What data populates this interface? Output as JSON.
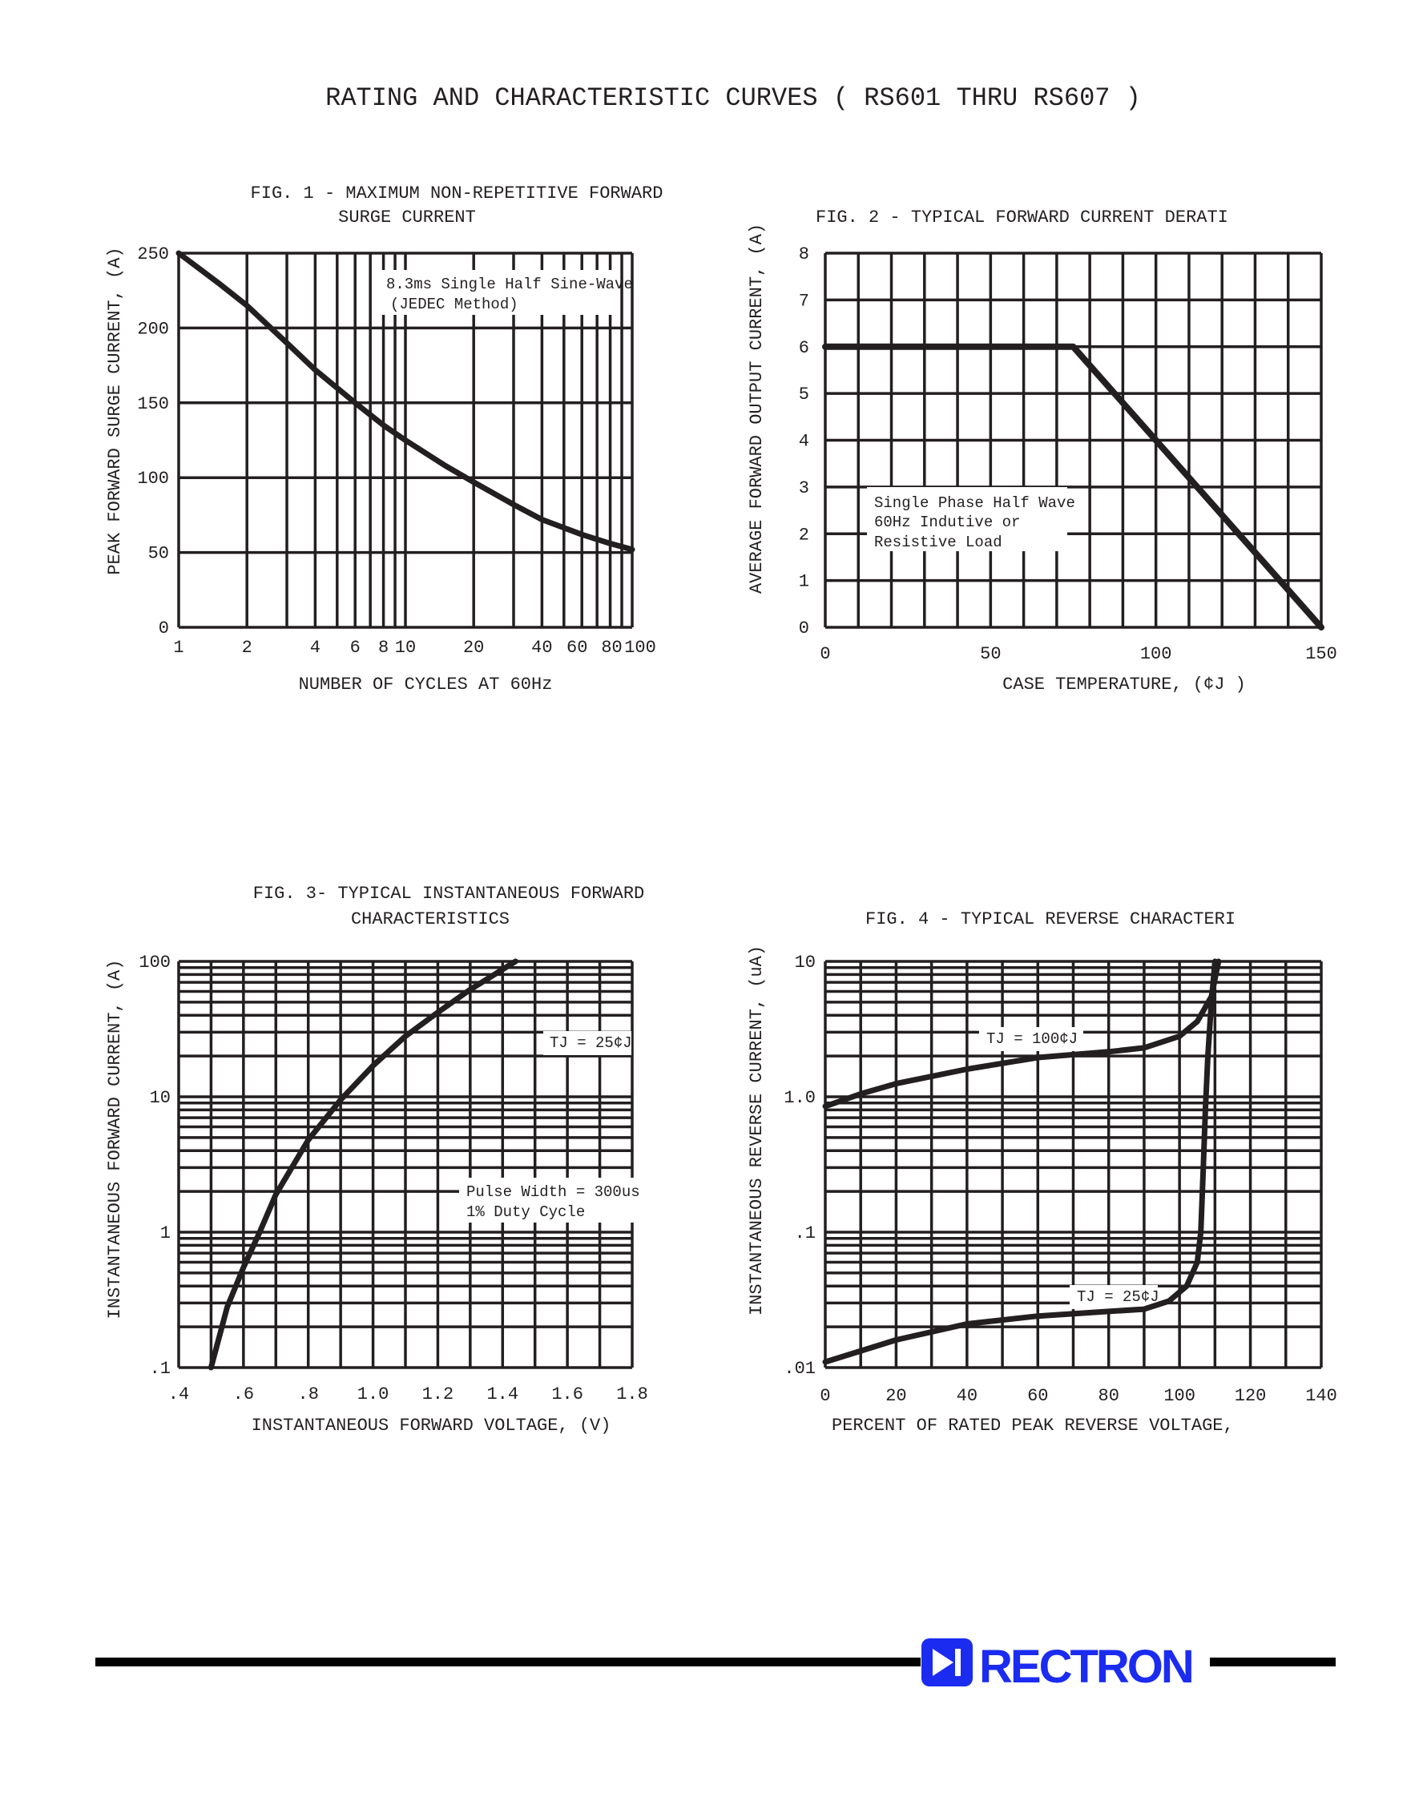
{
  "page_title": "RATING AND CHARACTERISTIC CURVES ( RS601 THRU RS607 )",
  "logo": {
    "text": "RECTRON",
    "color": "#1b2cf0"
  },
  "ink_color": "#231f20",
  "chart_data": [
    {
      "type": "line",
      "title": [
        "FIG. 1 - MAXIMUM NON-REPETITIVE FORWARD",
        "SURGE CURRENT"
      ],
      "xlabel": "NUMBER OF CYCLES AT 60Hz",
      "ylabel": "PEAK FORWARD SURGE CURRENT, (A)",
      "xscale": "log",
      "xlim": [
        1,
        100
      ],
      "ylim": [
        0,
        250
      ],
      "xticks": [
        {
          "v": 1,
          "l": "1"
        },
        {
          "v": 2,
          "l": "2"
        },
        {
          "v": 4,
          "l": "4"
        },
        {
          "v": 6,
          "l": "6"
        },
        {
          "v": 8,
          "l": "8"
        },
        {
          "v": 10,
          "l": "10"
        },
        {
          "v": 20,
          "l": "20"
        },
        {
          "v": 40,
          "l": "40"
        },
        {
          "v": 60,
          "l": "60"
        },
        {
          "v": 80,
          "l": "80"
        },
        {
          "v": 100,
          "l": "100"
        }
      ],
      "yticks": [
        {
          "v": 0,
          "l": "0"
        },
        {
          "v": 50,
          "l": "50"
        },
        {
          "v": 100,
          "l": "100"
        },
        {
          "v": 150,
          "l": "150"
        },
        {
          "v": 200,
          "l": "200"
        },
        {
          "v": 250,
          "l": "250"
        }
      ],
      "grid": true,
      "annotations": [
        "8.3ms Single Half Sine-Wave",
        "(JEDEC Method)"
      ],
      "series": [
        {
          "x": [
            1,
            1.5,
            2,
            3,
            4,
            6,
            8,
            10,
            15,
            20,
            30,
            40,
            60,
            80,
            100
          ],
          "y": [
            250,
            230,
            215,
            190,
            172,
            150,
            135,
            125,
            108,
            97,
            82,
            72,
            62,
            56,
            52
          ]
        }
      ]
    },
    {
      "type": "line",
      "title": [
        "FIG. 2 - TYPICAL FORWARD CURRENT DERATI"
      ],
      "xlabel": "CASE TEMPERATURE, (¢J )",
      "ylabel": "AVERAGE FORWARD OUTPUT CURRENT, (A)",
      "xscale": "linear",
      "xlim": [
        0,
        150
      ],
      "ylim": [
        0,
        8
      ],
      "xticks": [
        {
          "v": 0,
          "l": "0"
        },
        {
          "v": 50,
          "l": "50"
        },
        {
          "v": 100,
          "l": "100"
        },
        {
          "v": 150,
          "l": "150"
        }
      ],
      "yticks": [
        {
          "v": 0,
          "l": "0"
        },
        {
          "v": 1,
          "l": "1"
        },
        {
          "v": 2,
          "l": "2"
        },
        {
          "v": 3,
          "l": "3"
        },
        {
          "v": 4,
          "l": "4"
        },
        {
          "v": 5,
          "l": "5"
        },
        {
          "v": 6,
          "l": "6"
        },
        {
          "v": 7,
          "l": "7"
        },
        {
          "v": 8,
          "l": "8"
        }
      ],
      "grid": true,
      "annotations": [
        "Single Phase Half Wave",
        "60Hz Indutive or",
        "Resistive Load"
      ],
      "series": [
        {
          "x": [
            0,
            75,
            150
          ],
          "y": [
            6,
            6,
            0
          ]
        }
      ]
    },
    {
      "type": "line",
      "title": [
        "FIG. 3- TYPICAL INSTANTANEOUS FORWARD",
        "CHARACTERISTICS"
      ],
      "xlabel": "INSTANTANEOUS FORWARD VOLTAGE, (V)",
      "ylabel": "INSTANTANEOUS FORWARD CURRENT, (A)",
      "xscale": "linear",
      "yscale": "log",
      "xlim": [
        0.4,
        1.8
      ],
      "ylim": [
        0.1,
        100
      ],
      "xticks": [
        {
          "v": 0.4,
          "l": ".4"
        },
        {
          "v": 0.6,
          "l": ".6"
        },
        {
          "v": 0.8,
          "l": ".8"
        },
        {
          "v": 1.0,
          "l": "1.0"
        },
        {
          "v": 1.2,
          "l": "1.2"
        },
        {
          "v": 1.4,
          "l": "1.4"
        },
        {
          "v": 1.6,
          "l": "1.6"
        },
        {
          "v": 1.8,
          "l": "1.8"
        }
      ],
      "yticks": [
        {
          "v": 0.1,
          "l": ".1"
        },
        {
          "v": 1,
          "l": "1"
        },
        {
          "v": 10,
          "l": "10"
        },
        {
          "v": 100,
          "l": "100"
        }
      ],
      "grid": true,
      "annotations": [
        "TJ = 25¢J",
        "Pulse Width = 300us",
        "1% Duty Cycle"
      ],
      "series": [
        {
          "name": "TJ = 25¢J",
          "x": [
            0.5,
            0.55,
            0.6,
            0.65,
            0.7,
            0.8,
            0.9,
            1.0,
            1.1,
            1.2,
            1.3,
            1.44
          ],
          "y": [
            0.1,
            0.28,
            0.55,
            1.0,
            1.9,
            4.8,
            9.5,
            17,
            28,
            42,
            62,
            100
          ]
        }
      ]
    },
    {
      "type": "line",
      "title": [
        "FIG. 4 - TYPICAL REVERSE CHARACTERI"
      ],
      "xlabel": "PERCENT OF RATED PEAK REVERSE VOLTAGE,",
      "ylabel": "INSTANTANEOUS REVERSE CURRENT, (uA)",
      "xscale": "linear",
      "yscale": "log",
      "xlim": [
        0,
        140
      ],
      "ylim": [
        0.01,
        10
      ],
      "xticks": [
        {
          "v": 0,
          "l": "0"
        },
        {
          "v": 20,
          "l": "20"
        },
        {
          "v": 40,
          "l": "40"
        },
        {
          "v": 60,
          "l": "60"
        },
        {
          "v": 80,
          "l": "80"
        },
        {
          "v": 100,
          "l": "100"
        },
        {
          "v": 120,
          "l": "120"
        },
        {
          "v": 140,
          "l": "140"
        }
      ],
      "yticks": [
        {
          "v": 0.01,
          "l": ".01"
        },
        {
          "v": 0.1,
          "l": ".1"
        },
        {
          "v": 1,
          "l": "1.0"
        },
        {
          "v": 10,
          "l": "10"
        }
      ],
      "grid": true,
      "annotations": [
        "TJ = 100¢J",
        "TJ = 25¢J"
      ],
      "series": [
        {
          "name": "TJ = 100¢J",
          "x": [
            0,
            10,
            20,
            40,
            60,
            80,
            90,
            100,
            105,
            109,
            111
          ],
          "y": [
            0.85,
            1.05,
            1.25,
            1.6,
            1.95,
            2.15,
            2.3,
            2.8,
            3.6,
            5.5,
            10
          ]
        },
        {
          "name": "TJ = 25¢J",
          "x": [
            0,
            20,
            40,
            60,
            80,
            90,
            97,
            102,
            105,
            106,
            106.7,
            107.3,
            108,
            109,
            110
          ],
          "y": [
            0.011,
            0.016,
            0.021,
            0.024,
            0.026,
            0.027,
            0.031,
            0.04,
            0.06,
            0.1,
            0.3,
            0.8,
            2,
            5,
            10
          ]
        }
      ]
    }
  ]
}
